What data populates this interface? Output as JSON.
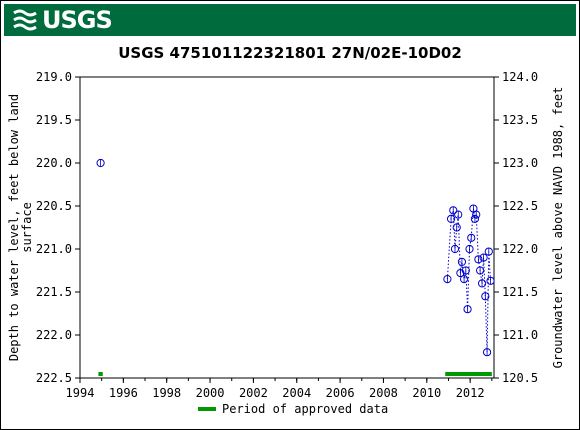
{
  "header": {
    "logo_text": "USGS",
    "logo_icon": "usgs-wave-icon",
    "banner_color": "#006b3d"
  },
  "chart_data": {
    "type": "scatter",
    "title": "USGS 475101122321801 27N/02E-10D02",
    "ylabel_left": "Depth to water level, feet below land surface",
    "ylabel_right": "Groundwater level above NAVD 1988, feet",
    "xlabel": "",
    "xlim": [
      1994,
      2013.1
    ],
    "ylim_left": [
      219.0,
      222.5
    ],
    "ylim_right": [
      124.0,
      120.5
    ],
    "y_left_inverted": true,
    "x_ticks": [
      "1994",
      "1996",
      "1998",
      "2000",
      "2002",
      "2004",
      "2006",
      "2008",
      "2010",
      "2012"
    ],
    "y_left_ticks": [
      "219.0",
      "219.5",
      "220.0",
      "220.5",
      "221.0",
      "221.5",
      "222.0",
      "222.5"
    ],
    "y_right_ticks": [
      "124.0",
      "123.5",
      "123.0",
      "122.5",
      "122.0",
      "121.5",
      "121.0",
      "120.5"
    ],
    "grid": false,
    "marker_color": "#0000cc",
    "series": [
      {
        "points": [
          {
            "x": 1994.95,
            "y": 220.0
          },
          {
            "x": 2010.95,
            "y": 221.35
          },
          {
            "x": 2011.12,
            "y": 220.65
          },
          {
            "x": 2011.22,
            "y": 220.55
          },
          {
            "x": 2011.3,
            "y": 221.0
          },
          {
            "x": 2011.38,
            "y": 220.75
          },
          {
            "x": 2011.45,
            "y": 220.6
          },
          {
            "x": 2011.55,
            "y": 221.28
          },
          {
            "x": 2011.62,
            "y": 221.15
          },
          {
            "x": 2011.72,
            "y": 221.35
          },
          {
            "x": 2011.8,
            "y": 221.25
          },
          {
            "x": 2011.88,
            "y": 221.7
          },
          {
            "x": 2011.97,
            "y": 221.0
          },
          {
            "x": 2012.05,
            "y": 220.87
          },
          {
            "x": 2012.15,
            "y": 220.53
          },
          {
            "x": 2012.22,
            "y": 220.65
          },
          {
            "x": 2012.28,
            "y": 220.6
          },
          {
            "x": 2012.38,
            "y": 221.12
          },
          {
            "x": 2012.46,
            "y": 221.25
          },
          {
            "x": 2012.55,
            "y": 221.4
          },
          {
            "x": 2012.62,
            "y": 221.1
          },
          {
            "x": 2012.7,
            "y": 221.55
          },
          {
            "x": 2012.78,
            "y": 222.2
          },
          {
            "x": 2012.86,
            "y": 221.03
          },
          {
            "x": 2012.94,
            "y": 221.37
          }
        ]
      }
    ],
    "approved_periods": [
      {
        "start": 1994.85,
        "end": 1995.05
      },
      {
        "start": 2010.85,
        "end": 2013.0
      }
    ],
    "approved_color": "#009900",
    "legend": {
      "label": "Period of approved data",
      "placement": "bottom"
    }
  }
}
